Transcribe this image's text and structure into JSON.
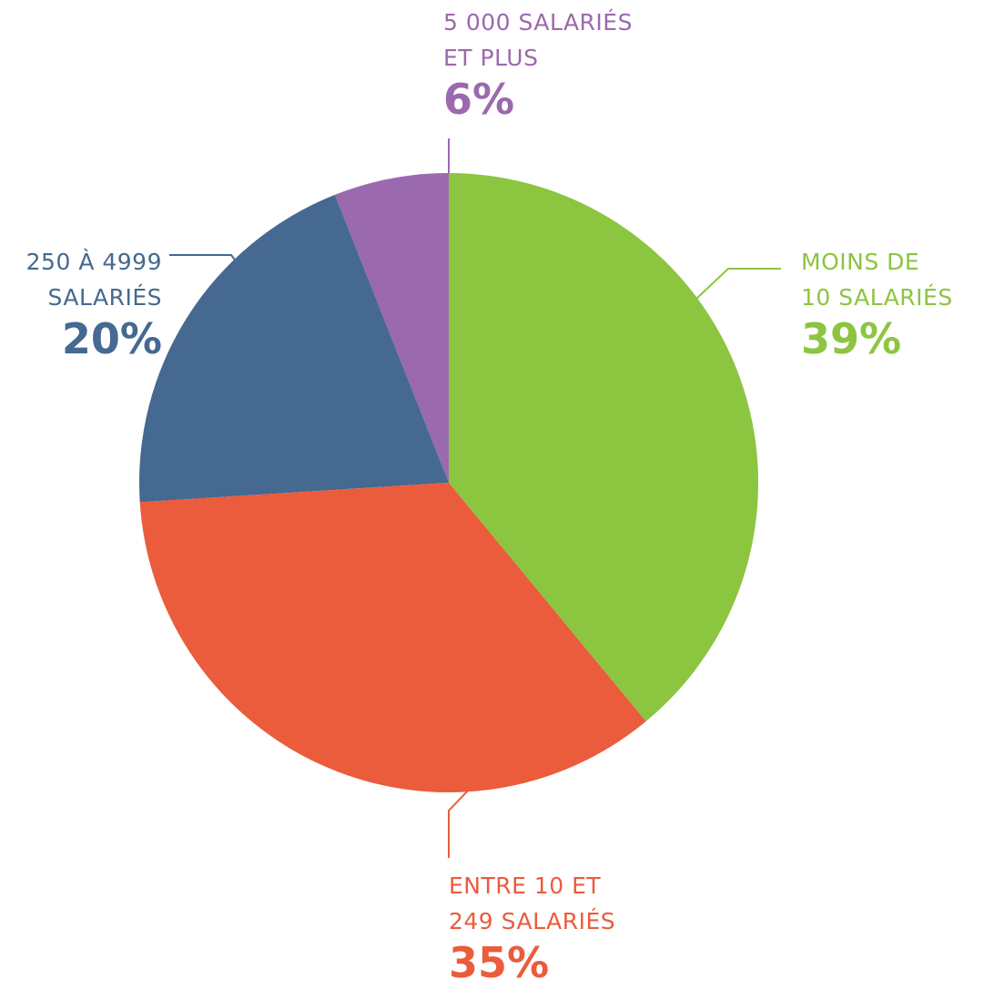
{
  "chart_data": {
    "type": "pie",
    "categories": [
      "MOINS DE\n10 SALARIÉS",
      "ENTRE 10 ET\n249 SALARIÉS",
      "250 À 4999\nSALARIÉS",
      "5 000 SALARIÉS\nET PLUS"
    ],
    "values": [
      39,
      35,
      20,
      6
    ],
    "value_labels": [
      "39%",
      "35%",
      "20%",
      "6%"
    ],
    "colors": [
      "#8cc540",
      "#ea5c3c",
      "#456990",
      "#9b69ad"
    ]
  }
}
